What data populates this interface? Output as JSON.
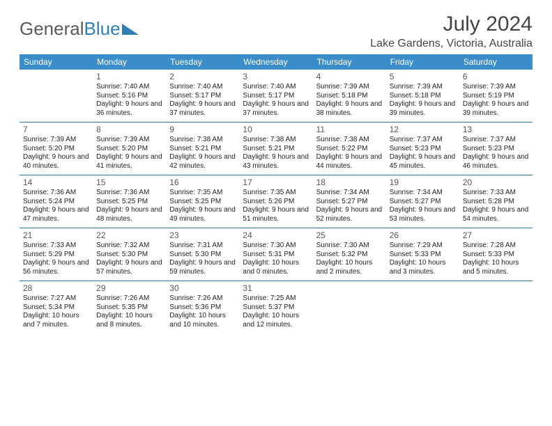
{
  "logo": {
    "text1": "General",
    "text2": "Blue"
  },
  "title": "July 2024",
  "location": "Lake Gardens, Victoria, Australia",
  "colors": {
    "header_bg": "#3a8dc9",
    "header_text": "#ffffff",
    "row_border": "#2d6f9e",
    "logo_gray": "#5a5a5a",
    "logo_blue": "#2f7fb8",
    "text": "#222222",
    "title_color": "#444444"
  },
  "weekdays": [
    "Sunday",
    "Monday",
    "Tuesday",
    "Wednesday",
    "Thursday",
    "Friday",
    "Saturday"
  ],
  "weeks": [
    [
      null,
      {
        "n": "1",
        "sr": "7:40 AM",
        "ss": "5:16 PM",
        "dl": "9 hours and 36 minutes."
      },
      {
        "n": "2",
        "sr": "7:40 AM",
        "ss": "5:17 PM",
        "dl": "9 hours and 37 minutes."
      },
      {
        "n": "3",
        "sr": "7:40 AM",
        "ss": "5:17 PM",
        "dl": "9 hours and 37 minutes."
      },
      {
        "n": "4",
        "sr": "7:39 AM",
        "ss": "5:18 PM",
        "dl": "9 hours and 38 minutes."
      },
      {
        "n": "5",
        "sr": "7:39 AM",
        "ss": "5:18 PM",
        "dl": "9 hours and 39 minutes."
      },
      {
        "n": "6",
        "sr": "7:39 AM",
        "ss": "5:19 PM",
        "dl": "9 hours and 39 minutes."
      }
    ],
    [
      {
        "n": "7",
        "sr": "7:39 AM",
        "ss": "5:20 PM",
        "dl": "9 hours and 40 minutes."
      },
      {
        "n": "8",
        "sr": "7:39 AM",
        "ss": "5:20 PM",
        "dl": "9 hours and 41 minutes."
      },
      {
        "n": "9",
        "sr": "7:38 AM",
        "ss": "5:21 PM",
        "dl": "9 hours and 42 minutes."
      },
      {
        "n": "10",
        "sr": "7:38 AM",
        "ss": "5:21 PM",
        "dl": "9 hours and 43 minutes."
      },
      {
        "n": "11",
        "sr": "7:38 AM",
        "ss": "5:22 PM",
        "dl": "9 hours and 44 minutes."
      },
      {
        "n": "12",
        "sr": "7:37 AM",
        "ss": "5:23 PM",
        "dl": "9 hours and 45 minutes."
      },
      {
        "n": "13",
        "sr": "7:37 AM",
        "ss": "5:23 PM",
        "dl": "9 hours and 46 minutes."
      }
    ],
    [
      {
        "n": "14",
        "sr": "7:36 AM",
        "ss": "5:24 PM",
        "dl": "9 hours and 47 minutes."
      },
      {
        "n": "15",
        "sr": "7:36 AM",
        "ss": "5:25 PM",
        "dl": "9 hours and 48 minutes."
      },
      {
        "n": "16",
        "sr": "7:35 AM",
        "ss": "5:25 PM",
        "dl": "9 hours and 49 minutes."
      },
      {
        "n": "17",
        "sr": "7:35 AM",
        "ss": "5:26 PM",
        "dl": "9 hours and 51 minutes."
      },
      {
        "n": "18",
        "sr": "7:34 AM",
        "ss": "5:27 PM",
        "dl": "9 hours and 52 minutes."
      },
      {
        "n": "19",
        "sr": "7:34 AM",
        "ss": "5:27 PM",
        "dl": "9 hours and 53 minutes."
      },
      {
        "n": "20",
        "sr": "7:33 AM",
        "ss": "5:28 PM",
        "dl": "9 hours and 54 minutes."
      }
    ],
    [
      {
        "n": "21",
        "sr": "7:33 AM",
        "ss": "5:29 PM",
        "dl": "9 hours and 56 minutes."
      },
      {
        "n": "22",
        "sr": "7:32 AM",
        "ss": "5:30 PM",
        "dl": "9 hours and 57 minutes."
      },
      {
        "n": "23",
        "sr": "7:31 AM",
        "ss": "5:30 PM",
        "dl": "9 hours and 59 minutes."
      },
      {
        "n": "24",
        "sr": "7:30 AM",
        "ss": "5:31 PM",
        "dl": "10 hours and 0 minutes."
      },
      {
        "n": "25",
        "sr": "7:30 AM",
        "ss": "5:32 PM",
        "dl": "10 hours and 2 minutes."
      },
      {
        "n": "26",
        "sr": "7:29 AM",
        "ss": "5:33 PM",
        "dl": "10 hours and 3 minutes."
      },
      {
        "n": "27",
        "sr": "7:28 AM",
        "ss": "5:33 PM",
        "dl": "10 hours and 5 minutes."
      }
    ],
    [
      {
        "n": "28",
        "sr": "7:27 AM",
        "ss": "5:34 PM",
        "dl": "10 hours and 7 minutes."
      },
      {
        "n": "29",
        "sr": "7:26 AM",
        "ss": "5:35 PM",
        "dl": "10 hours and 8 minutes."
      },
      {
        "n": "30",
        "sr": "7:26 AM",
        "ss": "5:36 PM",
        "dl": "10 hours and 10 minutes."
      },
      {
        "n": "31",
        "sr": "7:25 AM",
        "ss": "5:37 PM",
        "dl": "10 hours and 12 minutes."
      },
      null,
      null,
      null
    ]
  ],
  "labels": {
    "sunrise": "Sunrise:",
    "sunset": "Sunset:",
    "daylight": "Daylight:"
  }
}
